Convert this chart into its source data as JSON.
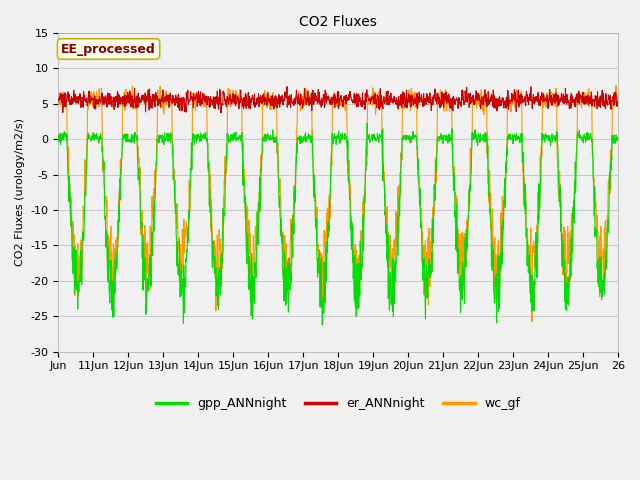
{
  "title": "CO2 Fluxes",
  "ylabel": "CO2 Fluxes (urology/m2/s)",
  "ylim": [
    -30,
    15
  ],
  "yticks": [
    -30,
    -25,
    -20,
    -15,
    -10,
    -5,
    0,
    5,
    10,
    15
  ],
  "x_start": 10,
  "x_end": 26,
  "xtick_positions": [
    10,
    11,
    12,
    13,
    14,
    15,
    16,
    17,
    18,
    19,
    20,
    21,
    22,
    23,
    24,
    25,
    26
  ],
  "xtick_labels": [
    "Jun",
    "11Jun",
    "12Jun",
    "13Jun",
    "14Jun",
    "15Jun",
    "16Jun",
    "17Jun",
    "18Jun",
    "19Jun",
    "20Jun",
    "21Jun",
    "22Jun",
    "23Jun",
    "24Jun",
    "25Jun",
    "26"
  ],
  "fig_bg_color": "#f0f0f0",
  "plot_bg_color": "#f0f0f0",
  "grid_color": "#c8c8c8",
  "legend_label": "EE_processed",
  "legend_text_color": "#8b0000",
  "legend_box_facecolor": "#fffff0",
  "legend_box_edgecolor": "#c8b400",
  "series_names": [
    "gpp_ANNnight",
    "er_ANNnight",
    "wc_gf"
  ],
  "series_colors": [
    "#00dd00",
    "#cc0000",
    "#ff9900"
  ],
  "line_width": 0.8,
  "title_fontsize": 10,
  "tick_fontsize": 8,
  "ylabel_fontsize": 8
}
